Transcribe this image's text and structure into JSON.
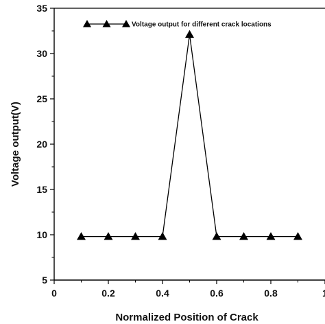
{
  "chart_data": {
    "type": "line",
    "title": "",
    "xlabel": "Normalized Position of Crack",
    "ylabel": "Voltage output(V)",
    "xlim": [
      0,
      1
    ],
    "ylim": [
      5,
      35
    ],
    "x_ticks": [
      0,
      0.2,
      0.4,
      0.6,
      0.8,
      1
    ],
    "x_tick_labels": [
      "0",
      "0.2",
      "0.4",
      "0.6",
      "0.8",
      "1"
    ],
    "y_ticks": [
      5,
      10,
      15,
      20,
      25,
      30,
      35
    ],
    "y_tick_labels": [
      "5",
      "10",
      "15",
      "20",
      "25",
      "30",
      "35"
    ],
    "grid": false,
    "legend_position": "top-left",
    "series": [
      {
        "name": "Voltage output for different crack locations",
        "marker": "triangle",
        "color": "#000000",
        "x": [
          0.1,
          0.2,
          0.3,
          0.4,
          0.5,
          0.6,
          0.7,
          0.8,
          0.9
        ],
        "y": [
          9.8,
          9.8,
          9.8,
          9.8,
          32.1,
          9.8,
          9.8,
          9.8,
          9.8
        ]
      }
    ]
  }
}
